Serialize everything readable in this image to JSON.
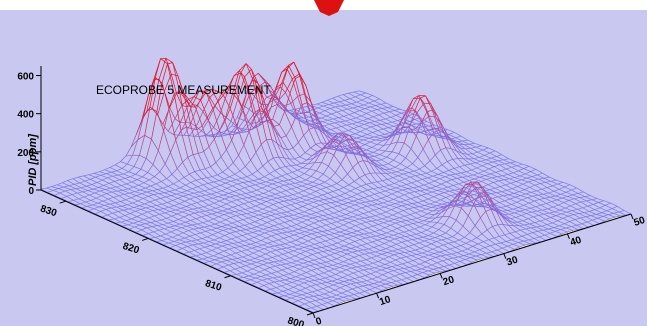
{
  "chart_data": {
    "type": "surface3d",
    "title": "ECOPROBE 5  MEASUREMENT",
    "zlabel": "PID [ppm]",
    "x_ticks": [
      "0",
      "10",
      "20",
      "30",
      "40",
      "50"
    ],
    "y_ticks": [
      "800",
      "810",
      "820",
      "830"
    ],
    "z_ticks": [
      "0",
      "200",
      "400",
      "600"
    ],
    "xlim": [
      0,
      50
    ],
    "ylim": [
      800,
      833
    ],
    "zlim": [
      0,
      650
    ],
    "peaks": [
      {
        "x": 17,
        "y": 831,
        "z": 560
      },
      {
        "x": 22,
        "y": 830,
        "z": 330
      },
      {
        "x": 26,
        "y": 828,
        "z": 470
      },
      {
        "x": 33,
        "y": 828,
        "z": 420
      },
      {
        "x": 32,
        "y": 821,
        "z": 200
      },
      {
        "x": 33,
        "y": 806,
        "z": 230
      },
      {
        "x": 43,
        "y": 820,
        "z": 310
      },
      {
        "x": 34,
        "y": 833,
        "z": 250
      }
    ],
    "colors": {
      "background": "#c8c8f0",
      "mesh_low": "#7a78f0",
      "mesh_high": "#e0102a",
      "side_fill": "#ffffcc",
      "side_lines": "#c8b84a",
      "marker": "#dd1111"
    }
  }
}
